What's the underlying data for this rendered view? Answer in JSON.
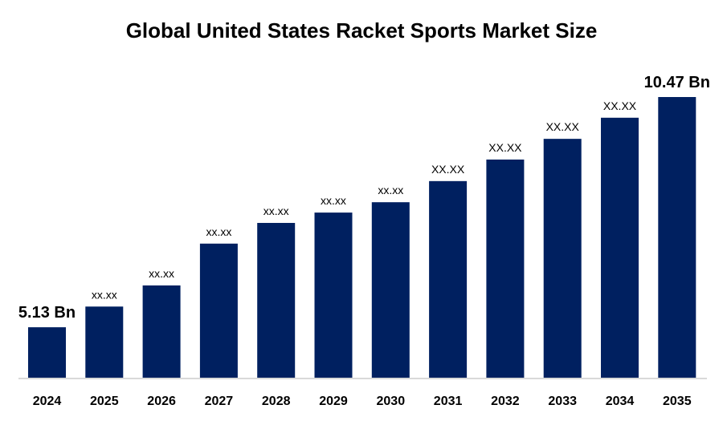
{
  "chart_data": {
    "type": "bar",
    "title": "Global United States Racket Sports Market Size",
    "xlabel": "",
    "ylabel": "",
    "categories": [
      "2024",
      "2025",
      "2026",
      "2027",
      "2028",
      "2029",
      "2030",
      "2031",
      "2032",
      "2033",
      "2034",
      "2035"
    ],
    "values": [
      5.13,
      5.61,
      6.1,
      7.07,
      7.55,
      7.79,
      8.03,
      8.52,
      9.02,
      9.5,
      9.99,
      10.47
    ],
    "data_labels": [
      "5.13 Bn",
      "xx.xx",
      "xx.xx",
      "xx.xx",
      "xx.xx",
      "xx.xx",
      "xx.xx",
      "XX.XX",
      "XX.XX",
      "XX.XX",
      "XX.XX",
      "10.47 Bn"
    ],
    "ylim": [
      3.96,
      10.47
    ],
    "grid": false,
    "legend": "none",
    "bar_color": "#002060",
    "axis_color": "#d9d9d9"
  }
}
